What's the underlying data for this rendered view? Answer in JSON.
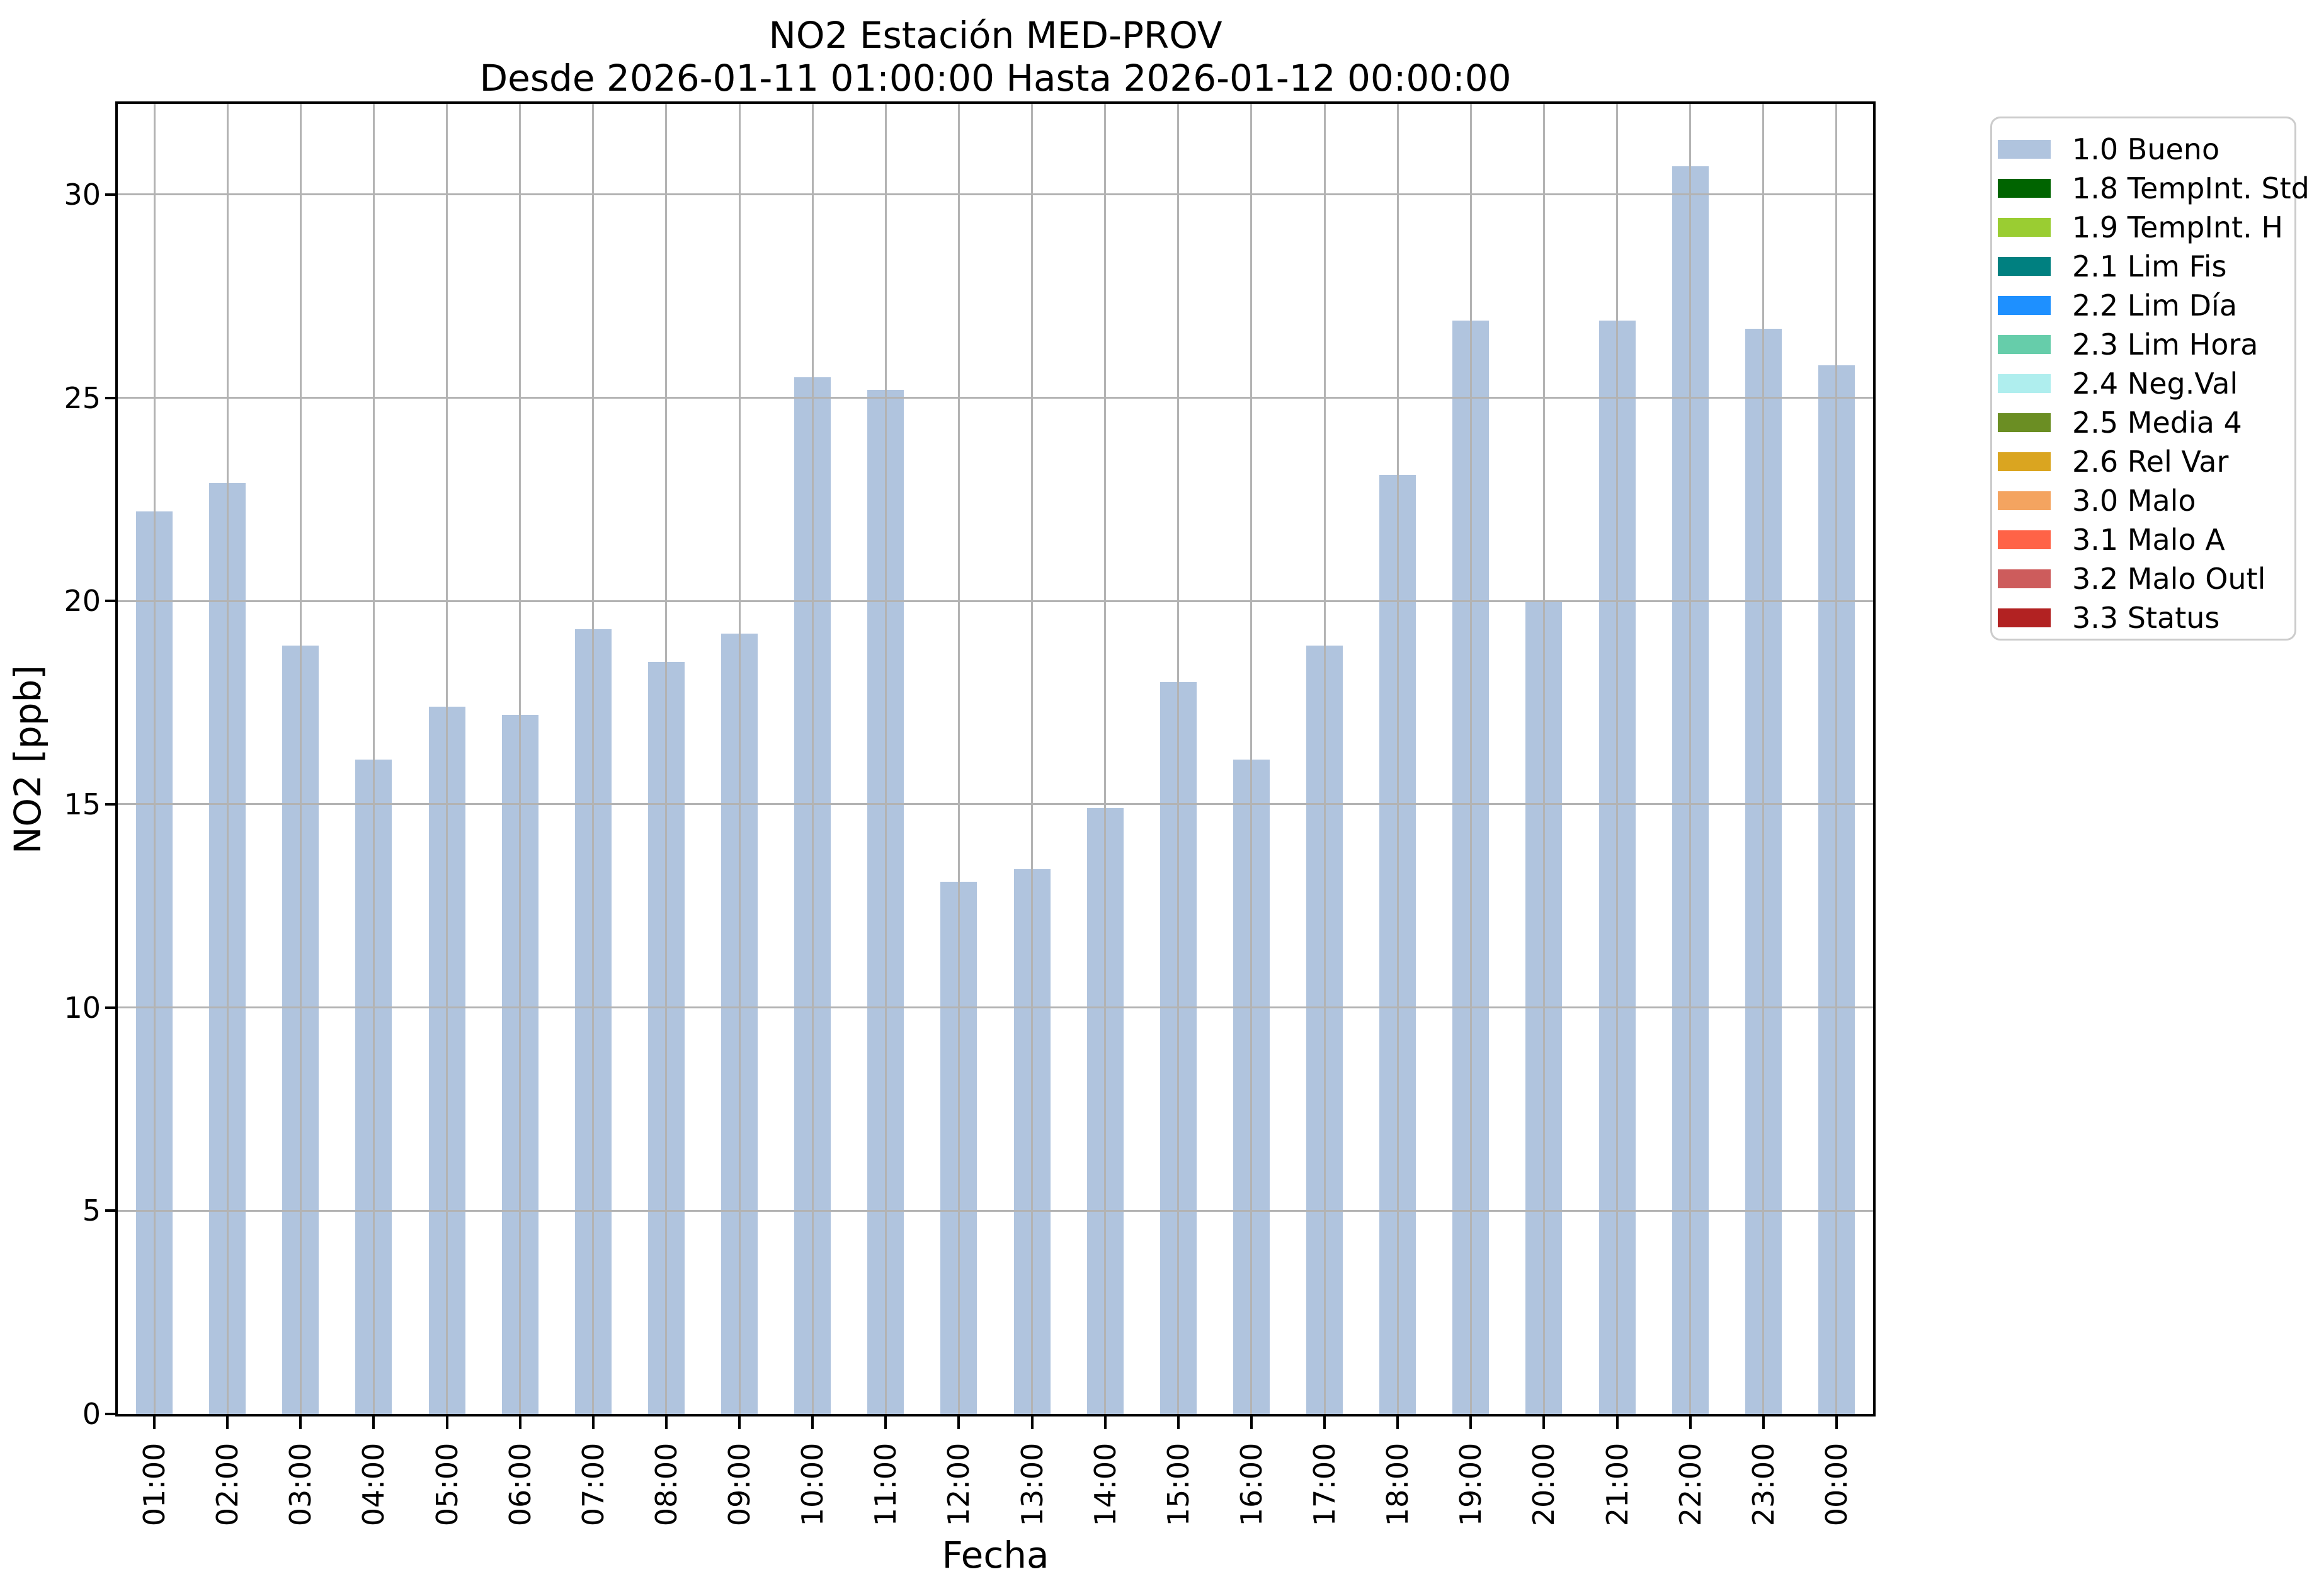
{
  "figure": {
    "title": "NO2 Estación MED-PROV",
    "subtitle": "Desde 2026-01-11 01:00:00 Hasta 2026-01-12 00:00:00"
  },
  "axes": {
    "xlabel": "Fecha",
    "ylabel": "NO2 [ppb]"
  },
  "colors": {
    "bar": "#B0C4DE",
    "grid": "#B3B3B3",
    "spine": "#000000",
    "background": "#FFFFFF",
    "legend_border": "#CCCCCC"
  },
  "chart_data": {
    "type": "bar",
    "title": "NO2 Estación MED-PROV",
    "subtitle": "Desde 2026-01-11 01:00:00 Hasta 2026-01-12 00:00:00",
    "xlabel": "Fecha",
    "ylabel": "NO2 [ppb]",
    "categories": [
      "01:00",
      "02:00",
      "03:00",
      "04:00",
      "05:00",
      "06:00",
      "07:00",
      "08:00",
      "09:00",
      "10:00",
      "11:00",
      "12:00",
      "13:00",
      "14:00",
      "15:00",
      "16:00",
      "17:00",
      "18:00",
      "19:00",
      "20:00",
      "21:00",
      "22:00",
      "23:00",
      "00:00"
    ],
    "values": [
      22.2,
      22.9,
      18.9,
      16.1,
      17.4,
      17.2,
      19.3,
      18.5,
      19.2,
      25.5,
      25.2,
      13.1,
      13.4,
      14.9,
      18.0,
      16.1,
      18.9,
      23.1,
      26.9,
      20.0,
      26.9,
      30.7,
      26.7,
      25.8
    ],
    "series_name": "1.0 Bueno",
    "bar_color": "#B0C4DE",
    "ylim": [
      0,
      32.23
    ],
    "yticks": [
      0,
      5,
      10,
      15,
      20,
      25,
      30
    ],
    "grid": true,
    "grid_over_bars": true,
    "legend_position": "outside upper right",
    "legend_entries": [
      {
        "label": "1.0 Bueno",
        "color": "#B0C4DE"
      },
      {
        "label": "1.8 TempInt. Std",
        "color": "#006400"
      },
      {
        "label": "1.9 TempInt. H",
        "color": "#9ACD32"
      },
      {
        "label": "2.1 Lim Fis",
        "color": "#008080"
      },
      {
        "label": "2.2 Lim Día",
        "color": "#1E90FF"
      },
      {
        "label": "2.3 Lim Hora",
        "color": "#66CDAA"
      },
      {
        "label": "2.4 Neg.Val",
        "color": "#AFEEEE"
      },
      {
        "label": "2.5 Media 4",
        "color": "#6B8E23"
      },
      {
        "label": "2.6 Rel Var",
        "color": "#DAA520"
      },
      {
        "label": "3.0 Malo",
        "color": "#F4A460"
      },
      {
        "label": "3.1 Malo A",
        "color": "#FF6347"
      },
      {
        "label": "3.2 Malo Outl",
        "color": "#CD5C5C"
      },
      {
        "label": "3.3 Status",
        "color": "#B22222"
      }
    ]
  }
}
